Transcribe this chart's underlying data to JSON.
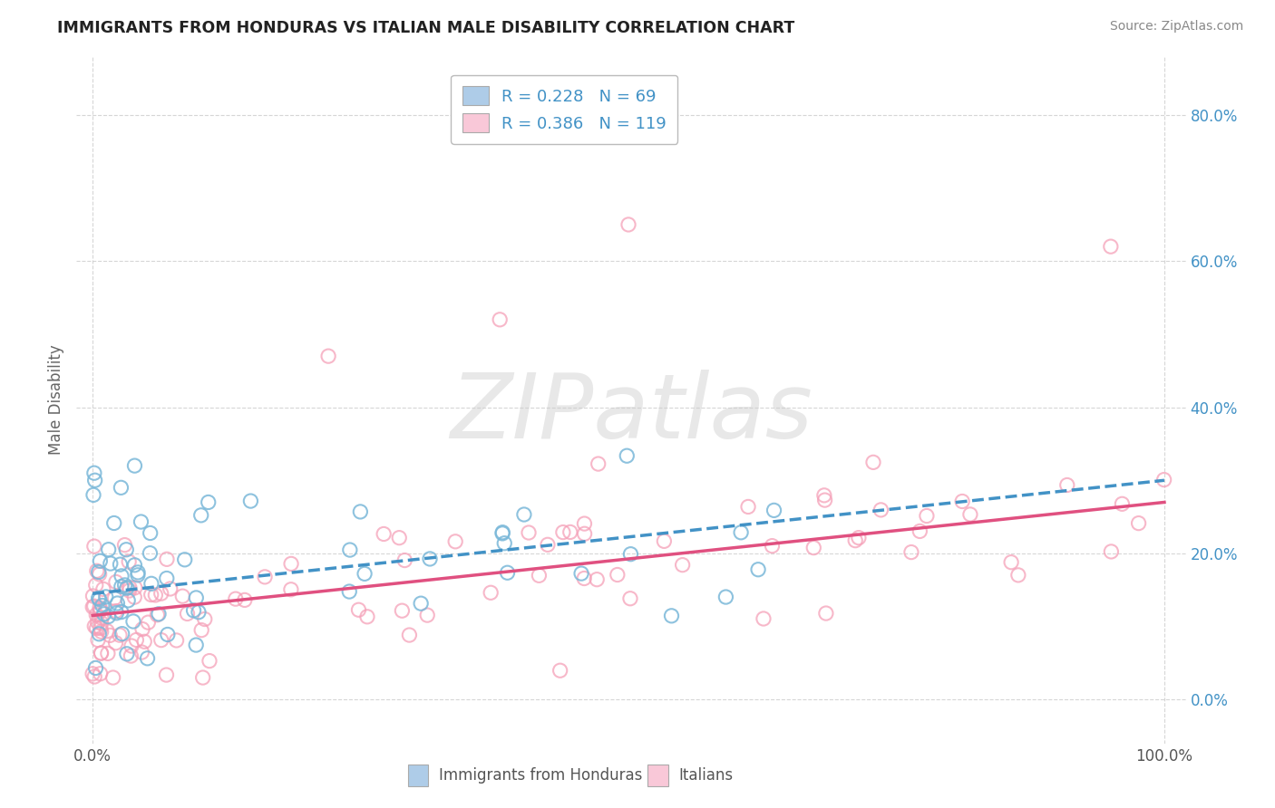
{
  "title": "IMMIGRANTS FROM HONDURAS VS ITALIAN MALE DISABILITY CORRELATION CHART",
  "source": "Source: ZipAtlas.com",
  "ylabel": "Male Disability",
  "background_color": "#ffffff",
  "grid_color": "#cccccc",
  "series1": {
    "label": "Immigrants from Honduras",
    "color": "#7ab8d9",
    "fill_color": "#aecce8",
    "R": 0.228,
    "N": 69
  },
  "series2": {
    "label": "Italians",
    "color": "#f5a0b8",
    "fill_color": "#f9c8d8",
    "R": 0.386,
    "N": 119
  },
  "trendline1_color": "#4292c6",
  "trendline2_color": "#e05080",
  "legend_R1": "R = 0.228",
  "legend_N1": "N = 69",
  "legend_R2": "R = 0.386",
  "legend_N2": "N = 119",
  "ytick_labels": [
    "0.0%",
    "20.0%",
    "40.0%",
    "60.0%",
    "80.0%"
  ],
  "ytick_vals": [
    0.0,
    0.2,
    0.4,
    0.6,
    0.8
  ],
  "xtick_labels": [
    "0.0%",
    "100.0%"
  ],
  "xtick_vals": [
    0.0,
    1.0
  ],
  "watermark": "ZIPatlas",
  "title_color": "#333333",
  "label_color": "#4292c6",
  "tick_color": "#555555"
}
